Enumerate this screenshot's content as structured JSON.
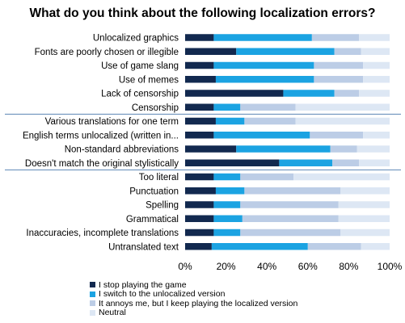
{
  "chart_data": {
    "type": "bar",
    "stacked": true,
    "orientation": "horizontal",
    "title": "What do you think about the following localization errors?",
    "categories": [
      "Unlocalized graphics",
      "Fonts are poorly chosen or illegible",
      "Use of game slang",
      "Use of memes",
      "Lack of censorship",
      "Censorship",
      "Various translations for one term",
      "English terms unlocalized (written in...",
      "Non-standard abbreviations",
      "Doesn't match the original stylistically",
      "Too literal",
      "Punctuation",
      "Spelling",
      "Grammatical",
      "Inaccuracies, incomplete translations",
      "Untranslated text"
    ],
    "series": [
      {
        "name": "I stop playing the game",
        "color": "#12294f",
        "values": [
          14,
          25,
          14,
          15,
          48,
          14,
          15,
          14,
          25,
          46,
          14,
          15,
          14,
          14,
          14,
          13
        ]
      },
      {
        "name": "I switch to the unlocalized version",
        "color": "#1ba3e2",
        "values": [
          48,
          48,
          49,
          48,
          25,
          13,
          14,
          47,
          46,
          26,
          13,
          14,
          13,
          14,
          13,
          47
        ]
      },
      {
        "name": "It annoys me, but I keep playing the localized version",
        "color": "#bccde6",
        "values": [
          23,
          13,
          24,
          24,
          12,
          27,
          25,
          26,
          13,
          13,
          26,
          47,
          48,
          47,
          49,
          26
        ]
      },
      {
        "name": "Neutral",
        "color": "#dde7f4",
        "values": [
          15,
          14,
          13,
          13,
          15,
          46,
          46,
          13,
          16,
          15,
          47,
          24,
          25,
          25,
          24,
          14
        ]
      }
    ],
    "xlim": [
      0,
      100
    ],
    "x_ticks": [
      "0%",
      "20%",
      "40%",
      "60%",
      "80%",
      "100%"
    ],
    "grid": false,
    "group_separators_after": [
      5,
      9
    ],
    "legend_position": "bottom-left"
  }
}
